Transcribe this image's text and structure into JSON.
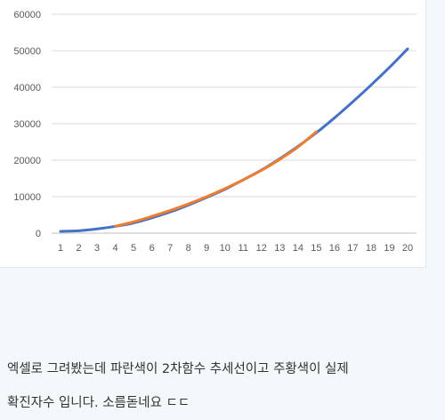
{
  "chart_data": {
    "type": "line",
    "title": "",
    "xlabel": "",
    "ylabel": "",
    "x": [
      1,
      2,
      3,
      4,
      5,
      6,
      7,
      8,
      9,
      10,
      11,
      12,
      13,
      14,
      15,
      16,
      17,
      18,
      19,
      20
    ],
    "xlim": [
      1,
      20
    ],
    "ylim": [
      0,
      60000
    ],
    "yticks": [
      0,
      10000,
      20000,
      30000,
      40000,
      50000,
      60000
    ],
    "grid": true,
    "legend": "none",
    "series": [
      {
        "color": "#4472c4",
        "x": [
          1,
          2,
          3,
          4,
          5,
          6,
          7,
          8,
          9,
          10,
          11,
          12,
          13,
          14,
          15,
          16,
          17,
          18,
          19,
          20
        ],
        "values": [
          500,
          650,
          1150,
          1850,
          2800,
          4200,
          5800,
          7700,
          9800,
          12000,
          14600,
          17300,
          20400,
          23800,
          27500,
          31600,
          36000,
          40600,
          45400,
          50500
        ]
      },
      {
        "color": "#ed7d31",
        "x": [
          4,
          5,
          6,
          7,
          8,
          9,
          10,
          11,
          12,
          13,
          14,
          15
        ],
        "values": [
          1900,
          3100,
          4600,
          6200,
          8000,
          10000,
          12200,
          14600,
          17200,
          20200,
          23600,
          27800
        ]
      }
    ]
  },
  "caption": {
    "line1": "엑셀로 그려봤는데 파란색이 2차함수 추세선이고 주황색이 실제",
    "line2": "확진자수 입니다. 소름돋네요 ㄷㄷ"
  },
  "colors": {
    "gridline": "#d9d9d9",
    "axis": "#bfbfbf",
    "background": "#ffffff"
  }
}
